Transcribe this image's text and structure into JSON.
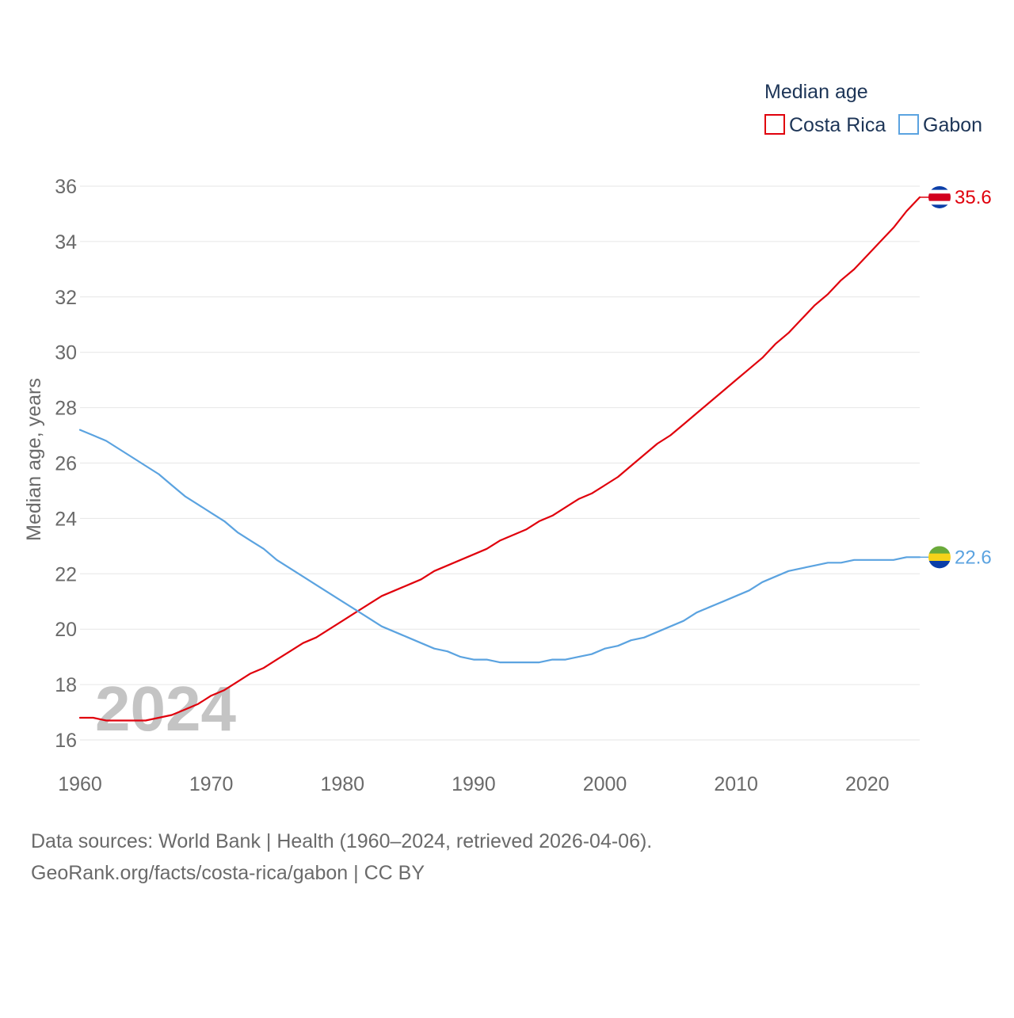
{
  "chart_data": {
    "type": "line",
    "legend_title": "Median age",
    "ylabel": "Median age, years",
    "xlabel": "",
    "year_label": "2024",
    "xlim": [
      1960,
      2024
    ],
    "ylim": [
      16,
      36
    ],
    "x_ticks": [
      "1960",
      "1970",
      "1980",
      "1990",
      "2000",
      "2010",
      "2020"
    ],
    "y_ticks": [
      "16",
      "18",
      "20",
      "22",
      "24",
      "26",
      "28",
      "30",
      "32",
      "34",
      "36"
    ],
    "x": [
      1960,
      1961,
      1962,
      1963,
      1964,
      1965,
      1966,
      1967,
      1968,
      1969,
      1970,
      1971,
      1972,
      1973,
      1974,
      1975,
      1976,
      1977,
      1978,
      1979,
      1980,
      1981,
      1982,
      1983,
      1984,
      1985,
      1986,
      1987,
      1988,
      1989,
      1990,
      1991,
      1992,
      1993,
      1994,
      1995,
      1996,
      1997,
      1998,
      1999,
      2000,
      2001,
      2002,
      2003,
      2004,
      2005,
      2006,
      2007,
      2008,
      2009,
      2010,
      2011,
      2012,
      2013,
      2014,
      2015,
      2016,
      2017,
      2018,
      2019,
      2020,
      2021,
      2022,
      2023,
      2024
    ],
    "series": [
      {
        "name": "Costa Rica",
        "color": "#e0000c",
        "end_label": "35.6",
        "flag": "costa-rica",
        "values": [
          16.8,
          16.8,
          16.7,
          16.7,
          16.7,
          16.7,
          16.8,
          16.9,
          17.1,
          17.3,
          17.6,
          17.8,
          18.1,
          18.4,
          18.6,
          18.9,
          19.2,
          19.5,
          19.7,
          20.0,
          20.3,
          20.6,
          20.9,
          21.2,
          21.4,
          21.6,
          21.8,
          22.1,
          22.3,
          22.5,
          22.7,
          22.9,
          23.2,
          23.4,
          23.6,
          23.9,
          24.1,
          24.4,
          24.7,
          24.9,
          25.2,
          25.5,
          25.9,
          26.3,
          26.7,
          27.0,
          27.4,
          27.8,
          28.2,
          28.6,
          29.0,
          29.4,
          29.8,
          30.3,
          30.7,
          31.2,
          31.7,
          32.1,
          32.6,
          33.0,
          33.5,
          34.0,
          34.5,
          35.1,
          35.6
        ]
      },
      {
        "name": "Gabon",
        "color": "#5ba3e0",
        "end_label": "22.6",
        "flag": "gabon",
        "values": [
          27.2,
          27.0,
          26.8,
          26.5,
          26.2,
          25.9,
          25.6,
          25.2,
          24.8,
          24.5,
          24.2,
          23.9,
          23.5,
          23.2,
          22.9,
          22.5,
          22.2,
          21.9,
          21.6,
          21.3,
          21.0,
          20.7,
          20.4,
          20.1,
          19.9,
          19.7,
          19.5,
          19.3,
          19.2,
          19.0,
          18.9,
          18.9,
          18.8,
          18.8,
          18.8,
          18.8,
          18.9,
          18.9,
          19.0,
          19.1,
          19.3,
          19.4,
          19.6,
          19.7,
          19.9,
          20.1,
          20.3,
          20.6,
          20.8,
          21.0,
          21.2,
          21.4,
          21.7,
          21.9,
          22.1,
          22.2,
          22.3,
          22.4,
          22.4,
          22.5,
          22.5,
          22.5,
          22.5,
          22.6,
          22.6
        ]
      }
    ]
  },
  "footer": {
    "sources": "Data sources: World Bank | Health (1960–2024, retrieved 2026-04-06).",
    "credit": "GeoRank.org/facts/costa-rica/gabon | CC BY"
  },
  "colors": {
    "grid": "#e6e6e6",
    "axis_text": "#6a6a6a",
    "legend_text": "#1d3557",
    "watermark": "#c4c4c4",
    "flag_blue": "#0b3ea8",
    "flag_white": "#ffffff",
    "flag_red": "#d2001e",
    "flag_green": "#6aaa3a",
    "flag_yellow": "#f5d21a"
  }
}
